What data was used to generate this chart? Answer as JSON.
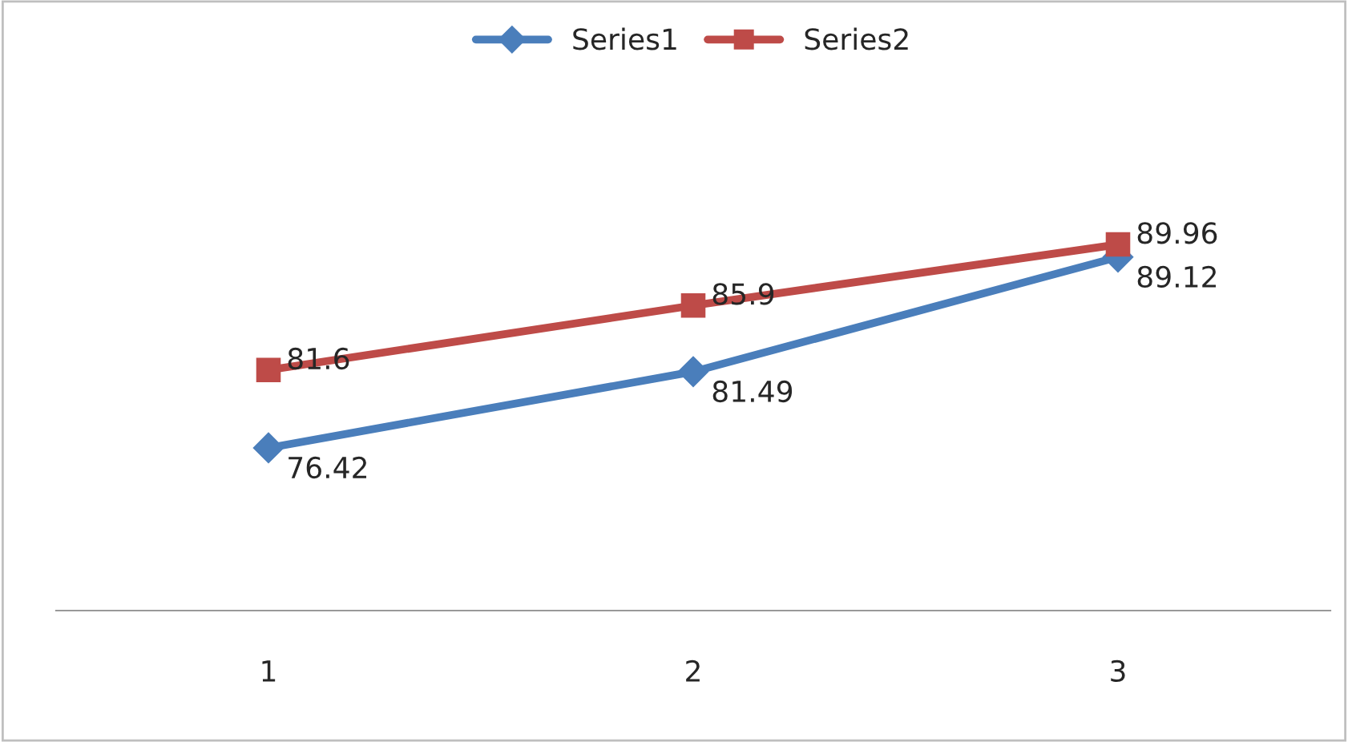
{
  "chart_data": {
    "type": "line",
    "categories": [
      "1",
      "2",
      "3"
    ],
    "series": [
      {
        "name": "Series1",
        "color": "#4a7ebb",
        "values": [
          76.42,
          81.49,
          89.12
        ],
        "marker": "diamond"
      },
      {
        "name": "Series2",
        "color": "#be4b48",
        "values": [
          81.6,
          85.9,
          89.96
        ],
        "marker": "square"
      }
    ],
    "data_labels": true,
    "legend": "top",
    "grid": false,
    "line_style": "solid"
  }
}
